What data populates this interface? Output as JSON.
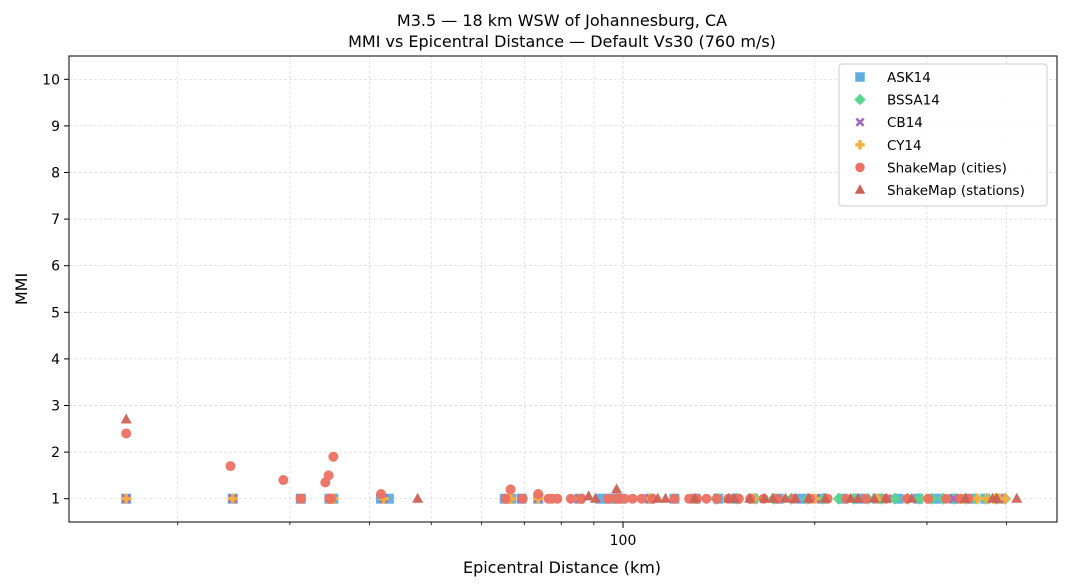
{
  "chart_data": {
    "type": "scatter",
    "title": "M3.5 — 18 km WSW of Johannesburg, CA",
    "subtitle": "MMI vs Epicentral Distance — Default Vs30 (760 m/s)",
    "xlabel": "Epicentral Distance (km)",
    "ylabel": "MMI",
    "xscale": "log",
    "xlim": [
      13.5,
      480
    ],
    "ylim": [
      0.5,
      10.5
    ],
    "x_tick_labels": [
      {
        "value": 100,
        "label": "100"
      }
    ],
    "y_ticks": [
      1,
      2,
      3,
      4,
      5,
      6,
      7,
      8,
      9,
      10
    ],
    "grid": true,
    "legend_position": "top-right",
    "series": [
      {
        "name": "ASK14",
        "marker": "square",
        "color": "#5dade2",
        "x": [
          16.6,
          24.4,
          31.2,
          34.6,
          35.1,
          41.7,
          42.9,
          65.2,
          66.7,
          69.3,
          73.6,
          85.4,
          92.1,
          94.8,
          98.1,
          110.2,
          120.4,
          130.0,
          141.1,
          150.3,
          160.0,
          175.5,
          190.4,
          205.3,
          220.7,
          235.4,
          250.8,
          270.4,
          290.6,
          310.3,
          330.8,
          350.6,
          370.4,
          390.1
        ],
        "y": [
          1,
          1,
          1,
          1,
          1,
          1,
          1,
          1,
          1,
          1,
          1,
          1,
          1,
          1,
          1,
          1,
          1,
          1,
          1,
          1,
          1,
          1,
          1,
          1,
          1,
          1,
          1,
          1,
          1,
          1,
          1,
          1,
          1,
          1
        ]
      },
      {
        "name": "BSSA14",
        "marker": "diamond",
        "color": "#58d68d",
        "x": [
          140.0,
          150.6,
          161.2,
          172.3,
          183.7,
          195.0,
          206.4,
          218.1,
          230.2,
          242.3,
          254.7,
          267.1,
          279.8,
          292.3,
          305.0,
          318.1,
          331.4,
          344.8,
          358.2,
          371.9,
          385.5,
          398.0
        ],
        "y": [
          1,
          1,
          1,
          1,
          1,
          1,
          1,
          1,
          1,
          1,
          1,
          1,
          1,
          1,
          1,
          1,
          1,
          1,
          1,
          1,
          1,
          1
        ]
      },
      {
        "name": "CB14",
        "marker": "x",
        "color": "#a569bd",
        "x": [
          16.6,
          24.4,
          31.2,
          34.8,
          42.1,
          66.0,
          69.3,
          73.6,
          85.5,
          110.4,
          150.8,
          200.5,
          260.2,
          330.6,
          390.0
        ],
        "y": [
          1,
          1,
          1,
          1,
          1,
          1,
          1,
          1,
          1,
          1,
          1,
          1,
          1,
          1,
          1
        ]
      },
      {
        "name": "CY14",
        "marker": "plus",
        "color": "#f5b041",
        "x": [
          16.6,
          24.4,
          31.2,
          34.6,
          35.1,
          42.1,
          65.8,
          66.7,
          73.6,
          85.4,
          94.8,
          110.2,
          130.0,
          160.3,
          200.1,
          250.4,
          300.5,
          340.6,
          360.3,
          372.0,
          381.7,
          390.4,
          398.1
        ],
        "y": [
          1,
          1,
          1,
          1,
          1,
          1,
          1,
          1,
          1,
          1,
          1,
          1,
          1,
          1,
          1,
          1,
          1,
          1,
          1,
          1,
          1,
          1,
          1
        ]
      },
      {
        "name": "ShakeMap (cities)",
        "marker": "circle",
        "color": "#ec7063",
        "x": [
          16.6,
          24.2,
          29.3,
          31.2,
          34.1,
          34.5,
          34.6,
          35.1,
          34.8,
          41.7,
          66.6,
          65.4,
          69.6,
          73.6,
          76.4,
          77.4,
          78.9,
          82.8,
          86.0,
          94.8,
          97.5,
          98.2,
          99.1,
          100.6,
          103.5,
          107.0,
          111.3,
          120.5,
          127.0,
          130.6,
          135.2,
          140.4,
          146.3,
          152.0,
          158.4,
          166.2,
          175.0,
          185.3,
          196.7,
          209.5,
          224.1,
          240.3,
          258.6,
          279.1,
          301.2,
          321.6,
          338.4,
          348.6
        ],
        "y": [
          2.4,
          1.7,
          1.4,
          1.0,
          1.35,
          1.5,
          1.0,
          1.9,
          1.0,
          1.1,
          1.2,
          1.0,
          1.0,
          1.1,
          1.0,
          1.0,
          1.0,
          1.0,
          1.0,
          1.0,
          1.0,
          1.0,
          1.0,
          1.0,
          1.0,
          1.0,
          1.0,
          1.0,
          1.0,
          1.0,
          1.0,
          1.0,
          1.0,
          1.0,
          1.0,
          1.0,
          1.0,
          1.0,
          1.0,
          1.0,
          1.0,
          1.0,
          1.0,
          1.0,
          1.0,
          1.0,
          1.0,
          1.0
        ]
      },
      {
        "name": "ShakeMap (stations)",
        "marker": "triangle",
        "color": "#cd6155",
        "x": [
          16.6,
          47.6,
          88.3,
          90.5,
          97.7,
          113.4,
          116.6,
          129.6,
          146.4,
          149.5,
          158.1,
          166.8,
          171.8,
          179.9,
          186.5,
          195.5,
          207.6,
          227.8,
          233.8,
          247.9,
          258.8,
          284.0,
          344.6,
          380.2,
          386.1,
          415.0
        ],
        "y": [
          2.7,
          1.0,
          1.05,
          1.0,
          1.2,
          1.0,
          1.0,
          1.0,
          1.0,
          1.0,
          1.0,
          1.0,
          1.0,
          1.0,
          1.0,
          1.0,
          1.0,
          1.0,
          1.0,
          1.0,
          1.0,
          1.0,
          1.0,
          1.0,
          1.0,
          1.0
        ]
      }
    ]
  }
}
